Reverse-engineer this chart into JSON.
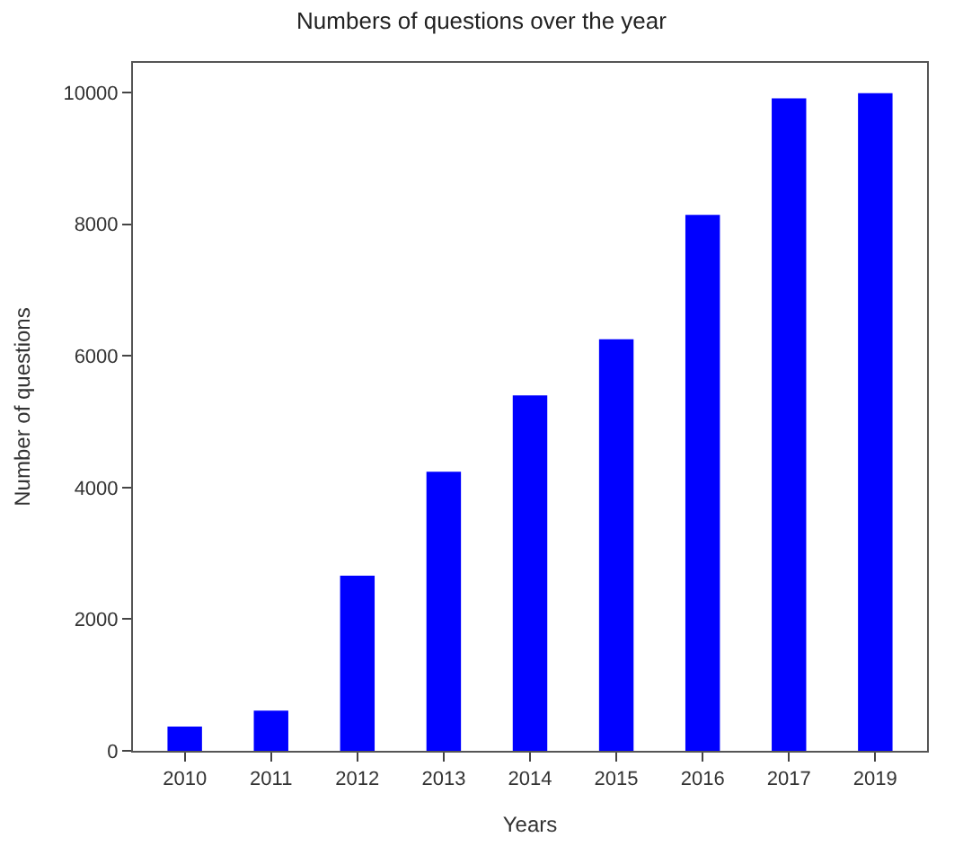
{
  "chart_data": {
    "type": "bar",
    "title": "Numbers of questions over the year",
    "xlabel": "Years",
    "ylabel": "Number of questions",
    "categories": [
      "2010",
      "2011",
      "2012",
      "2013",
      "2014",
      "2015",
      "2016",
      "2017",
      "2019"
    ],
    "values": [
      370,
      610,
      2660,
      4240,
      5400,
      6250,
      8140,
      9910,
      9990
    ],
    "color": "#0000ff",
    "ylim": [
      0,
      10450
    ],
    "yticks": [
      0,
      2000,
      4000,
      6000,
      8000,
      10000
    ]
  }
}
